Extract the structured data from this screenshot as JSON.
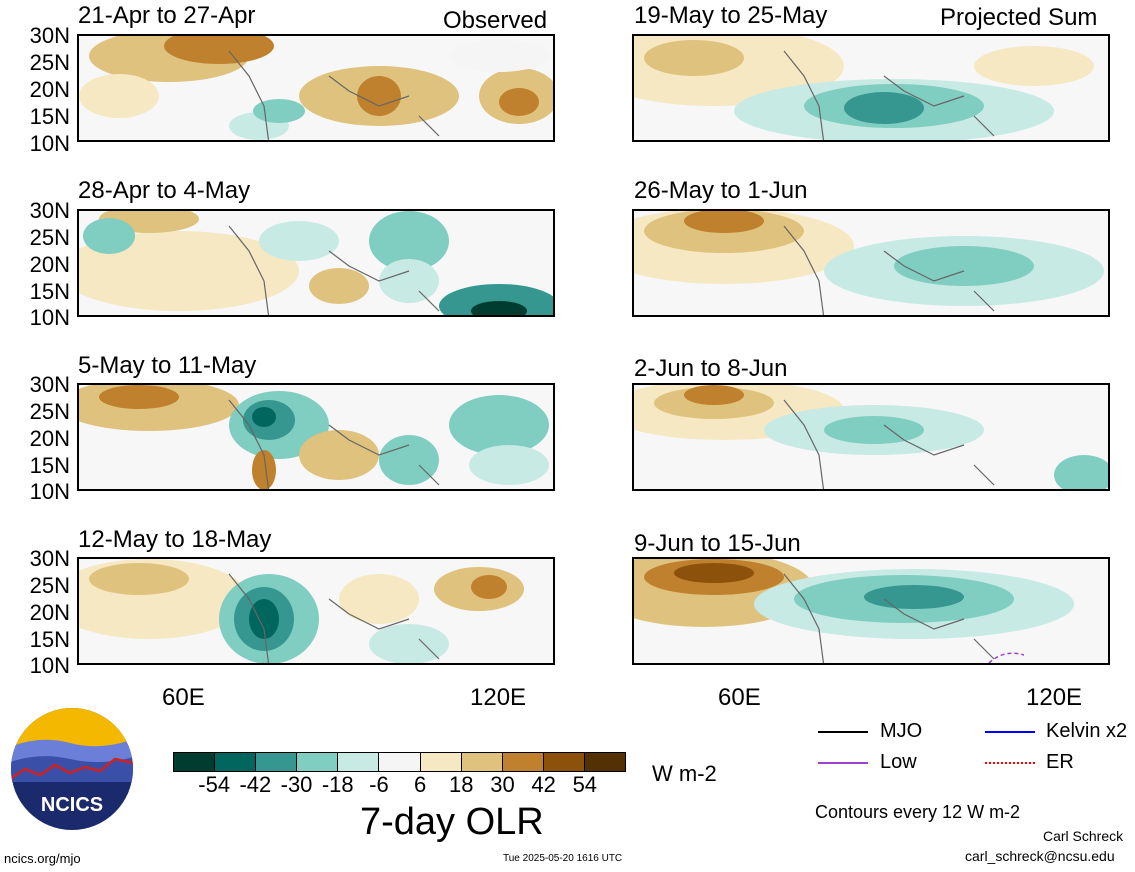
{
  "header": {
    "left_label": "Observed",
    "right_label": "Projected Sum"
  },
  "panels": [
    {
      "title": "21-Apr to 27-Apr"
    },
    {
      "title": "28-Apr to 4-May"
    },
    {
      "title": "5-May to 11-May"
    },
    {
      "title": "12-May to 18-May"
    },
    {
      "title": "19-May to 25-May"
    },
    {
      "title": "26-May to 1-Jun"
    },
    {
      "title": "2-Jun to 8-Jun"
    },
    {
      "title": "9-Jun to 15-Jun"
    }
  ],
  "lat_labels": [
    "30N",
    "25N",
    "20N",
    "15N",
    "10N"
  ],
  "lon_labels": [
    "60E",
    "120E"
  ],
  "colorbar": {
    "colors": [
      "#003c30",
      "#01665e",
      "#35978f",
      "#80cdc1",
      "#c7eae5",
      "#f5f5f5",
      "#f6e8c3",
      "#dfc27d",
      "#bf812d",
      "#8c510a",
      "#543005"
    ],
    "ticks": [
      "-54",
      "-42",
      "-30",
      "-18",
      "-6",
      "6",
      "18",
      "30",
      "42",
      "54"
    ],
    "units": "W m-2",
    "title": "7-day OLR"
  },
  "legend": {
    "items": [
      {
        "label": "MJO",
        "color": "#000000",
        "style": "solid"
      },
      {
        "label": "Kelvin x2",
        "color": "#0000ff",
        "style": "solid"
      },
      {
        "label": "Low",
        "color": "#a040d0",
        "style": "solid"
      },
      {
        "label": "ER",
        "color": "#ff0000",
        "style": "dotted"
      }
    ],
    "contour_note": "Contours every 12 W m-2"
  },
  "footer": {
    "logo_text": "NCICS",
    "site": "ncics.org/mjo",
    "timestamp": "Tue 2025-05-20 1616 UTC",
    "author": "Carl Schreck",
    "email": "carl_schreck@ncsu.edu"
  },
  "chart_data": {
    "type": "heatmap",
    "title": "7-day OLR",
    "units": "W m-2",
    "levels": [
      -54,
      -42,
      -30,
      -18,
      -6,
      6,
      18,
      30,
      42,
      54
    ],
    "lat_range": [
      10,
      30
    ],
    "lon_range": [
      40,
      130
    ],
    "panels_observed": [
      "21-Apr to 27-Apr",
      "28-Apr to 4-May",
      "5-May to 11-May",
      "12-May to 18-May"
    ],
    "panels_projected": [
      "19-May to 25-May",
      "26-May to 1-Jun",
      "2-Jun to 8-Jun",
      "9-Jun to 15-Jun"
    ]
  }
}
